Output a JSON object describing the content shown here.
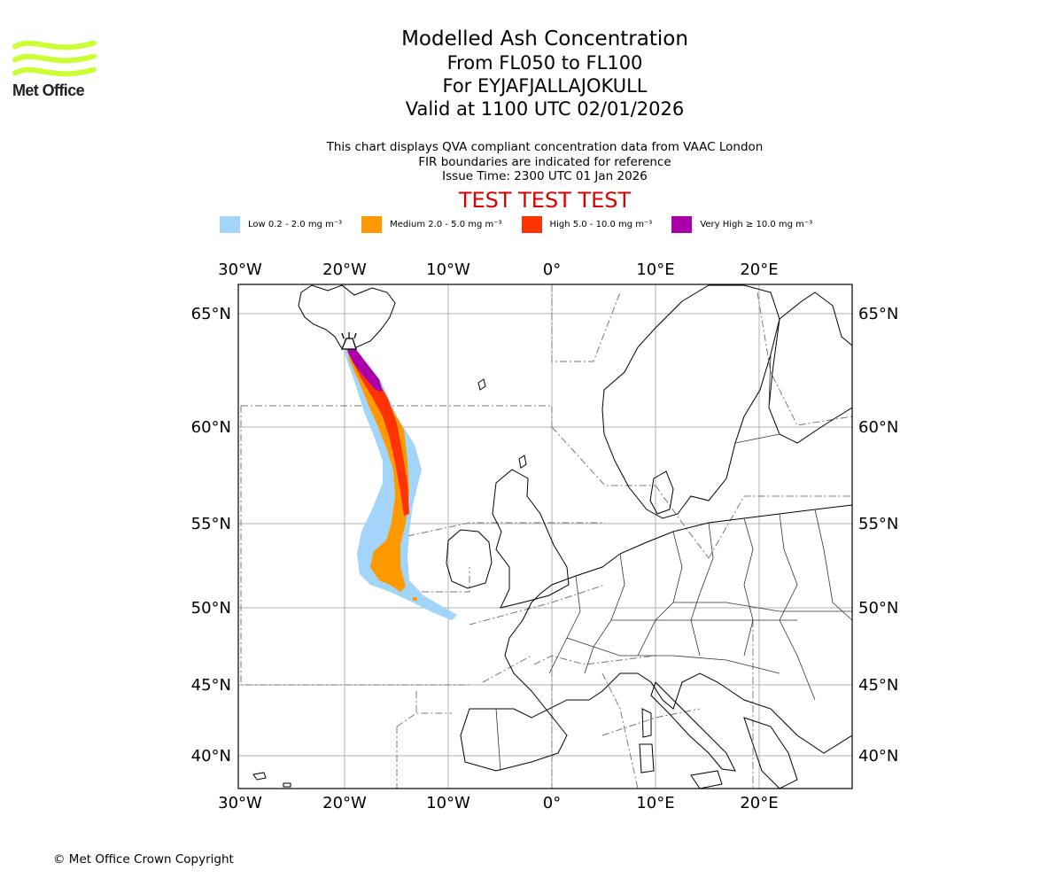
{
  "logo": {
    "text": "Met Office",
    "color": "#ccff33"
  },
  "title": {
    "line1": "Modelled Ash Concentration",
    "line2": "From FL050 to FL100",
    "line3": "For EYJAFJALLAJOKULL",
    "line4": "Valid at 1100 UTC 02/01/2026"
  },
  "subtitle": {
    "line1": "This chart displays QVA compliant concentration data from VAAC London",
    "line2": "FIR boundaries are indicated for reference",
    "line3": "Issue Time: 2300 UTC 01 Jan 2026"
  },
  "test_banner": "TEST TEST TEST",
  "legend": [
    {
      "label": "Low 0.2 - 2.0 mg m⁻³",
      "color": "#a3d4fa"
    },
    {
      "label": "Medium 2.0 - 5.0 mg m⁻³",
      "color": "#ff9900"
    },
    {
      "label": "High 5.0 - 10.0 mg m⁻³",
      "color": "#ff3300"
    },
    {
      "label": "Very High ≥ 10.0 mg m⁻³",
      "color": "#aa00aa"
    }
  ],
  "map": {
    "lon_ticks": [
      "30°W",
      "20°W",
      "10°W",
      "0°",
      "10°E",
      "20°E"
    ],
    "lat_ticks": [
      "65°N",
      "60°N",
      "55°N",
      "50°N",
      "45°N",
      "40°N"
    ],
    "lon_range": [
      -30,
      29
    ],
    "lat_range": [
      38,
      67
    ],
    "volcano": {
      "name": "EYJAFJALLAJOKULL",
      "lon": -19.6,
      "lat": 63.6
    }
  },
  "copyright": "© Met Office Crown Copyright"
}
